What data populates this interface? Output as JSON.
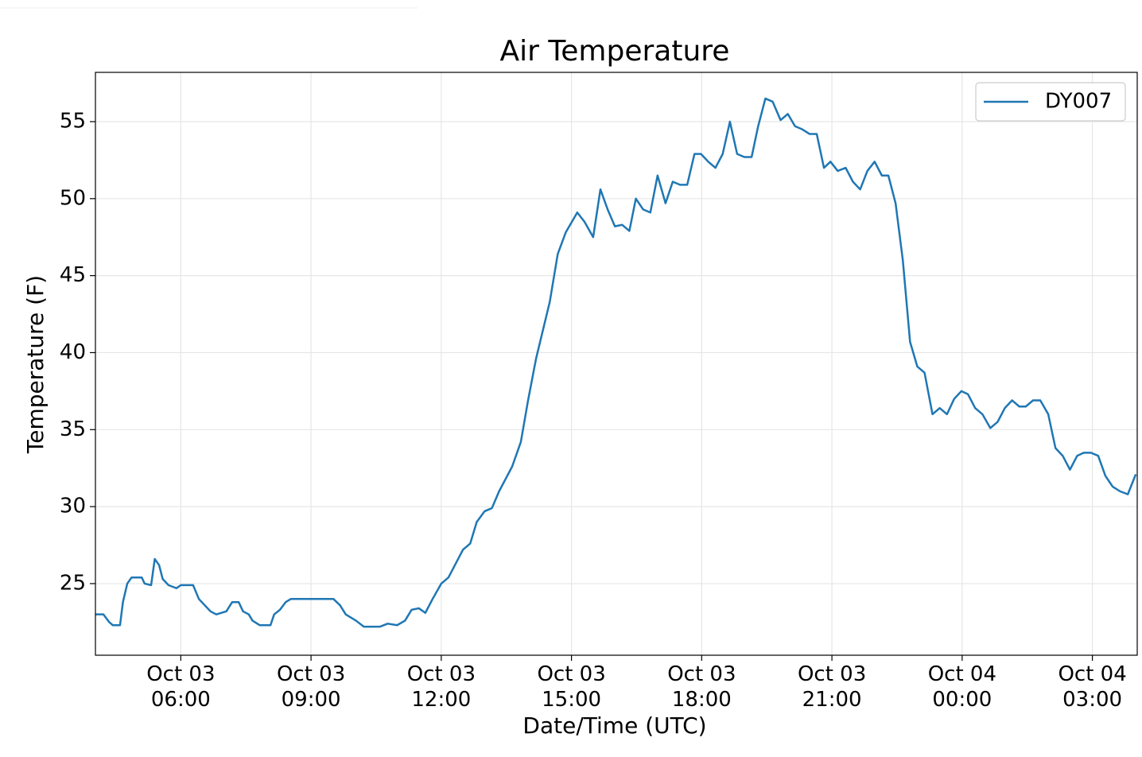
{
  "chart_data": {
    "type": "line",
    "title": "Air Temperature",
    "xlabel": "Date/Time (UTC)",
    "ylabel": "Temperature (F)",
    "x": [
      "Oct 03 04:02",
      "Oct 03 04:13",
      "Oct 03 04:21",
      "Oct 03 04:26",
      "Oct 03 04:36",
      "Oct 03 04:40",
      "Oct 03 04:46",
      "Oct 03 04:52",
      "Oct 03 05:06",
      "Oct 03 05:10",
      "Oct 03 05:19",
      "Oct 03 05:24",
      "Oct 03 05:30",
      "Oct 03 05:35",
      "Oct 03 05:43",
      "Oct 03 05:54",
      "Oct 03 06:00",
      "Oct 03 06:17",
      "Oct 03 06:25",
      "Oct 03 06:33",
      "Oct 03 06:41",
      "Oct 03 06:49",
      "Oct 03 07:03",
      "Oct 03 07:11",
      "Oct 03 07:20",
      "Oct 03 07:26",
      "Oct 03 07:34",
      "Oct 03 07:39",
      "Oct 03 07:49",
      "Oct 03 08:04",
      "Oct 03 08:09",
      "Oct 03 08:17",
      "Oct 03 08:25",
      "Oct 03 08:32",
      "Oct 03 08:58",
      "Oct 03 09:31",
      "Oct 03 09:40",
      "Oct 03 09:48",
      "Oct 03 10:02",
      "Oct 03 10:13",
      "Oct 03 10:35",
      "Oct 03 10:46",
      "Oct 03 10:59",
      "Oct 03 11:10",
      "Oct 03 11:19",
      "Oct 03 11:29",
      "Oct 03 11:38",
      "Oct 03 11:48",
      "Oct 03 12:00",
      "Oct 03 12:10",
      "Oct 03 12:30",
      "Oct 03 12:40",
      "Oct 03 12:49",
      "Oct 03 13:00",
      "Oct 03 13:10",
      "Oct 03 13:20",
      "Oct 03 13:38",
      "Oct 03 13:50",
      "Oct 03 14:00",
      "Oct 03 14:11",
      "Oct 03 14:30",
      "Oct 03 14:41",
      "Oct 03 14:52",
      "Oct 03 15:08",
      "Oct 03 15:18",
      "Oct 03 15:30",
      "Oct 03 15:40",
      "Oct 03 15:50",
      "Oct 03 16:00",
      "Oct 03 16:10",
      "Oct 03 16:20",
      "Oct 03 16:29",
      "Oct 03 16:39",
      "Oct 03 16:49",
      "Oct 03 16:59",
      "Oct 03 17:10",
      "Oct 03 17:20",
      "Oct 03 17:30",
      "Oct 03 17:40",
      "Oct 03 17:50",
      "Oct 03 17:59",
      "Oct 03 18:09",
      "Oct 03 18:19",
      "Oct 03 18:29",
      "Oct 03 18:39",
      "Oct 03 18:49",
      "Oct 03 18:59",
      "Oct 03 19:09",
      "Oct 03 19:18",
      "Oct 03 19:28",
      "Oct 03 19:38",
      "Oct 03 19:49",
      "Oct 03 19:59",
      "Oct 03 20:09",
      "Oct 03 20:19",
      "Oct 03 20:29",
      "Oct 03 20:39",
      "Oct 03 20:49",
      "Oct 03 20:58",
      "Oct 03 21:08",
      "Oct 03 21:19",
      "Oct 03 21:29",
      "Oct 03 21:39",
      "Oct 03 21:49",
      "Oct 03 21:59",
      "Oct 03 22:09",
      "Oct 03 22:18",
      "Oct 03 22:28",
      "Oct 03 22:38",
      "Oct 03 22:48",
      "Oct 03 22:58",
      "Oct 03 23:08",
      "Oct 03 23:19",
      "Oct 03 23:29",
      "Oct 03 23:39",
      "Oct 03 23:49",
      "Oct 03 23:59",
      "Oct 04 00:08",
      "Oct 04 00:18",
      "Oct 04 00:28",
      "Oct 04 00:39",
      "Oct 04 00:49",
      "Oct 04 00:59",
      "Oct 04 01:09",
      "Oct 04 01:19",
      "Oct 04 01:28",
      "Oct 04 01:38",
      "Oct 04 01:48",
      "Oct 04 01:59",
      "Oct 04 02:09",
      "Oct 04 02:19",
      "Oct 04 02:29",
      "Oct 04 02:39",
      "Oct 04 02:48",
      "Oct 04 02:58",
      "Oct 04 03:08",
      "Oct 04 03:18",
      "Oct 04 03:28",
      "Oct 04 03:38",
      "Oct 04 03:49",
      "Oct 04 04:00"
    ],
    "series": [
      {
        "name": "DY007",
        "color": "#1f77b4",
        "values": [
          23.0,
          23.0,
          22.5,
          22.3,
          22.3,
          23.8,
          25.0,
          25.4,
          25.4,
          25.0,
          24.9,
          26.6,
          26.2,
          25.3,
          24.9,
          24.7,
          24.9,
          24.9,
          24.0,
          23.6,
          23.2,
          23.0,
          23.2,
          23.8,
          23.8,
          23.2,
          23.0,
          22.6,
          22.3,
          22.3,
          23.0,
          23.3,
          23.8,
          24.0,
          24.0,
          24.0,
          23.6,
          23.0,
          22.6,
          22.2,
          22.2,
          22.4,
          22.3,
          22.6,
          23.3,
          23.4,
          23.1,
          24.0,
          25.0,
          25.4,
          27.2,
          27.6,
          29.0,
          29.7,
          29.9,
          31.0,
          32.6,
          34.2,
          36.9,
          39.6,
          43.3,
          46.4,
          47.8,
          49.1,
          48.5,
          47.5,
          50.6,
          49.3,
          48.2,
          48.3,
          47.9,
          50.0,
          49.3,
          49.1,
          51.5,
          49.7,
          51.1,
          50.9,
          50.9,
          52.9,
          52.9,
          52.4,
          52.0,
          52.9,
          55.0,
          52.9,
          52.7,
          52.7,
          54.7,
          56.5,
          56.3,
          55.1,
          55.5,
          54.7,
          54.5,
          54.2,
          54.2,
          52.0,
          52.4,
          51.8,
          52.0,
          51.1,
          50.6,
          51.8,
          52.4,
          51.5,
          51.5,
          49.7,
          46.0,
          40.7,
          39.1,
          38.7,
          36.0,
          36.4,
          36.0,
          37.0,
          37.5,
          37.3,
          36.4,
          36.0,
          35.1,
          35.5,
          36.4,
          36.9,
          36.5,
          36.5,
          36.9,
          36.9,
          36.0,
          33.8,
          33.3,
          32.4,
          33.3,
          33.5,
          33.5,
          33.3,
          32.0,
          31.3,
          31.0,
          30.8,
          32.1
        ]
      }
    ],
    "xlim": [
      "Oct 03 04:02",
      "Oct 04 04:02"
    ],
    "xticks": [
      "Oct 03 06:00",
      "Oct 03 09:00",
      "Oct 03 12:00",
      "Oct 03 15:00",
      "Oct 03 18:00",
      "Oct 03 21:00",
      "Oct 04 00:00",
      "Oct 04 03:00"
    ],
    "ylim": [
      20.35,
      58.2
    ],
    "yticks": [
      25,
      30,
      35,
      40,
      45,
      50,
      55
    ],
    "grid": true,
    "legend": "upper right"
  }
}
